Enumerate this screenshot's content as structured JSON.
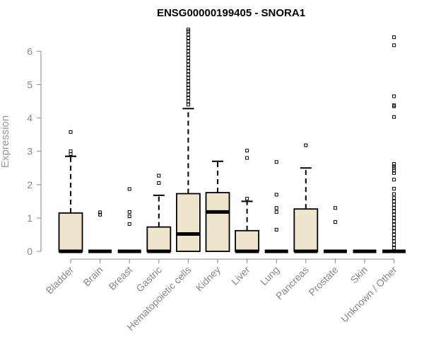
{
  "chart_data": {
    "type": "box",
    "title": "ENSG00000199405 - SNORA1",
    "xlabel": "",
    "ylabel": "Expression",
    "ylim": [
      0,
      6.7
    ],
    "yticks": [
      0,
      1,
      2,
      3,
      4,
      5,
      6
    ],
    "colors": {
      "box_fill": "#ede6cc",
      "box_stroke": "#000000",
      "axis": "#888888"
    },
    "categories": [
      "Bladder",
      "Brain",
      "Breast",
      "Gastric",
      "Hematopoietic cells",
      "Kidney",
      "Liver",
      "Lung",
      "Pancreas",
      "Prostate",
      "Skin",
      "Unknown / Other"
    ],
    "boxes": [
      {
        "q1": 0,
        "median": 0,
        "q3": 1.15,
        "whisker_low": 0,
        "whisker_high": 2.85,
        "outliers": [
          3.58,
          3.0,
          2.92
        ]
      },
      {
        "q1": 0,
        "median": 0,
        "q3": 0,
        "whisker_low": 0,
        "whisker_high": 0,
        "outliers": [
          1.17,
          1.1
        ]
      },
      {
        "q1": 0,
        "median": 0,
        "q3": 0,
        "whisker_low": 0,
        "whisker_high": 0,
        "outliers": [
          1.87,
          1.18,
          1.05,
          0.82
        ]
      },
      {
        "q1": 0,
        "median": 0,
        "q3": 0.73,
        "whisker_low": 0,
        "whisker_high": 1.68,
        "outliers": [
          2.27,
          2.05
        ]
      },
      {
        "q1": 0,
        "median": 0.52,
        "q3": 1.73,
        "whisker_low": 0,
        "whisker_high": 4.28,
        "outliers": [
          4.4,
          4.5,
          4.6,
          4.7,
          4.8,
          4.9,
          5.0,
          5.1,
          5.2,
          5.3,
          5.4,
          5.5,
          5.6,
          5.7,
          5.8,
          5.9,
          6.0,
          6.1,
          6.2,
          6.3,
          6.4,
          6.5,
          6.6,
          6.65
        ]
      },
      {
        "q1": 0,
        "median": 1.18,
        "q3": 1.76,
        "whisker_low": 0,
        "whisker_high": 2.7,
        "outliers": []
      },
      {
        "q1": 0,
        "median": 0,
        "q3": 0.62,
        "whisker_low": 0,
        "whisker_high": 1.5,
        "outliers": [
          3.02,
          2.8,
          1.58
        ]
      },
      {
        "q1": 0,
        "median": 0,
        "q3": 0,
        "whisker_low": 0,
        "whisker_high": 0,
        "outliers": [
          2.68,
          1.7,
          1.3,
          1.18,
          0.65
        ]
      },
      {
        "q1": 0,
        "median": 0,
        "q3": 1.27,
        "whisker_low": 0,
        "whisker_high": 2.5,
        "outliers": [
          3.18
        ]
      },
      {
        "q1": 0,
        "median": 0,
        "q3": 0,
        "whisker_low": 0,
        "whisker_high": 0,
        "outliers": [
          1.3,
          0.88
        ]
      },
      {
        "q1": 0,
        "median": 0,
        "q3": 0,
        "whisker_low": 0,
        "whisker_high": 0,
        "outliers": []
      },
      {
        "q1": 0,
        "median": 0,
        "q3": 0,
        "whisker_low": 0,
        "whisker_high": 0,
        "outliers": [
          6.42,
          6.18,
          4.65,
          4.38,
          4.35,
          4.03,
          2.62,
          2.55,
          2.5,
          2.42,
          2.35,
          2.15,
          1.88,
          1.72,
          1.6,
          1.5,
          1.4,
          1.3,
          1.2,
          1.1,
          1.0,
          0.9,
          0.8,
          0.7,
          0.6,
          0.5,
          0.4,
          0.3,
          0.2,
          0.1
        ]
      }
    ]
  }
}
